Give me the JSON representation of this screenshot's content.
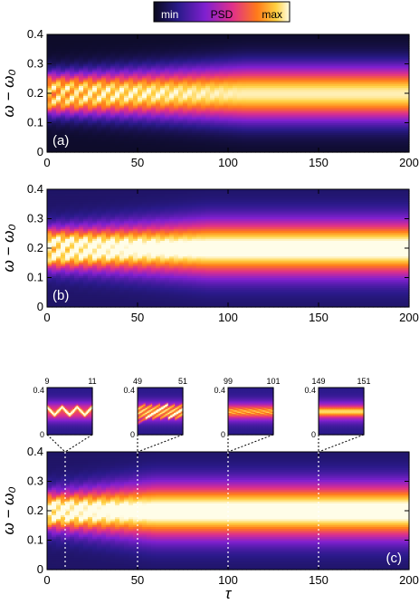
{
  "colorbar": {
    "label": "PSD",
    "min_label": "min",
    "max_label": "max"
  },
  "chart_data": [
    {
      "type": "heatmap",
      "panel_tag": "(a)",
      "ylabel": "ω − ω₀",
      "xlabel": "",
      "xlim": [
        0,
        200
      ],
      "ylim": [
        0,
        0.4
      ],
      "x_ticks": [
        "0",
        "50",
        "100",
        "150",
        "200"
      ],
      "y_ticks": [
        "0",
        "0.1",
        "0.2",
        "0.3",
        "0.4"
      ],
      "band": {
        "center": 0.2,
        "initial_split": [
          0.17,
          0.23
        ],
        "merge_tau": 110
      }
    },
    {
      "type": "heatmap",
      "panel_tag": "(b)",
      "ylabel": "ω − ω₀",
      "xlabel": "",
      "xlim": [
        0,
        200
      ],
      "ylim": [
        0,
        0.4
      ],
      "x_ticks": [
        "0",
        "50",
        "100",
        "150",
        "200"
      ],
      "y_ticks": [
        "0",
        "0.1",
        "0.2",
        "0.3",
        "0.4"
      ],
      "band": {
        "center": 0.2,
        "initial_split": [
          0.17,
          0.23
        ],
        "merge_tau": 90
      }
    },
    {
      "type": "heatmap",
      "panel_tag": "(c)",
      "ylabel": "ω − ω₀",
      "xlabel": "τ",
      "xlim": [
        0,
        200
      ],
      "ylim": [
        0,
        0.4
      ],
      "x_ticks": [
        "0",
        "50",
        "100",
        "150",
        "200"
      ],
      "y_ticks": [
        "0",
        "0.1",
        "0.2",
        "0.3",
        "0.4"
      ],
      "markers": [
        10,
        50,
        100,
        150
      ],
      "band": {
        "center": 0.2,
        "initial_split": [
          0.18,
          0.22
        ],
        "merge_tau": 60
      }
    }
  ],
  "insets": [
    {
      "xlim": [
        9,
        11
      ],
      "x_tick_left": "9",
      "x_tick_right": "11",
      "y_ticks": [
        "0",
        "0.4"
      ],
      "style": "zigzag"
    },
    {
      "xlim": [
        49,
        51
      ],
      "x_tick_left": "49",
      "x_tick_right": "51",
      "y_ticks": [
        "0",
        "0.4"
      ],
      "style": "multi"
    },
    {
      "xlim": [
        99,
        101
      ],
      "x_tick_left": "99",
      "x_tick_right": "101",
      "y_ticks": [
        "0",
        "0.4"
      ],
      "style": "fringe"
    },
    {
      "xlim": [
        149,
        151
      ],
      "x_tick_left": "149",
      "x_tick_right": "151",
      "y_ticks": [
        "0",
        "0.4"
      ],
      "style": "flat"
    }
  ]
}
